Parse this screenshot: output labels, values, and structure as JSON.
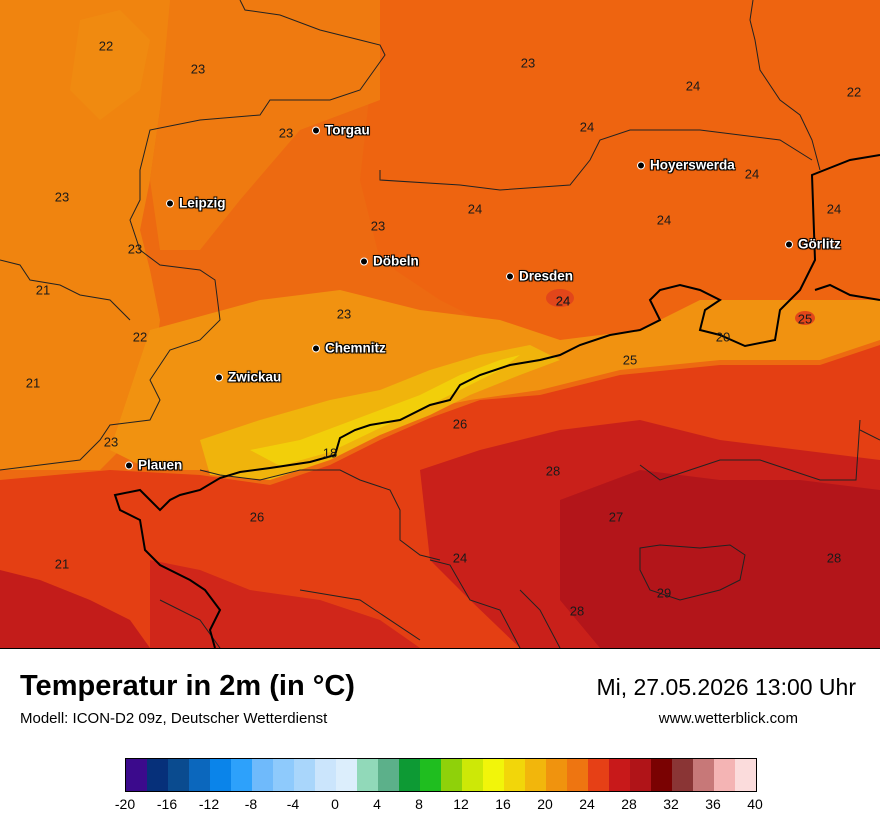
{
  "header": {
    "title": "Temperatur in 2m (in °C)",
    "model": "Modell: ICON-D2 09z, Deutscher Wetterdienst",
    "datetime": "Mi, 27.05.2026 13:00 Uhr",
    "website": "www.wetterblick.com"
  },
  "cities": [
    {
      "name": "Torgau"
    },
    {
      "name": "Hoyerswerda"
    },
    {
      "name": "Leipzig"
    },
    {
      "name": "Döbeln"
    },
    {
      "name": "Dresden"
    },
    {
      "name": "Görlitz"
    },
    {
      "name": "Chemnitz"
    },
    {
      "name": "Zwickau"
    },
    {
      "name": "Plauen"
    }
  ],
  "temperature_labels": [
    "22",
    "23",
    "23",
    "24",
    "22",
    "23",
    "24",
    "23",
    "24",
    "24",
    "23",
    "24",
    "24",
    "24",
    "23",
    "21",
    "23",
    "24",
    "22",
    "25",
    "20",
    "21",
    "25",
    "23",
    "26",
    "18",
    "28",
    "26",
    "27",
    "21",
    "24",
    "28",
    "29",
    "28"
  ],
  "legend": {
    "colors": [
      "#3b0a8c",
      "#06307a",
      "#0a4b8f",
      "#0b67bd",
      "#0a84ea",
      "#2da1fb",
      "#6fbafb",
      "#8ecafc",
      "#a9d6fb",
      "#cbe5fc",
      "#dceefc",
      "#91d9b9",
      "#5cb08a",
      "#0d9a34",
      "#1fbe1f",
      "#8fd10a",
      "#cde807",
      "#f2f50a",
      "#f2d60a",
      "#f2b60c",
      "#f0930e",
      "#ee7511",
      "#e64016",
      "#c8191a",
      "#b01418",
      "#7a0202",
      "#8a3535",
      "#c77878",
      "#f4b4b4",
      "#fbdcdc"
    ],
    "ticks": [
      "-20",
      "-16",
      "-12",
      "-8",
      "-4",
      "0",
      "4",
      "8",
      "12",
      "16",
      "20",
      "24",
      "28",
      "32",
      "36",
      "40"
    ]
  }
}
